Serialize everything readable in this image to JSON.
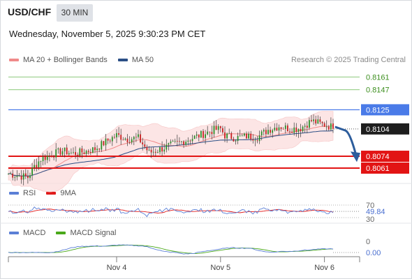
{
  "header": {
    "symbol": "USD/CHF",
    "timeframe": "30 MIN",
    "datetime": "Wednesday, November 5, 2025 9:30:23 PM CET",
    "credit": "Research © 2025 Trading Central"
  },
  "legends": {
    "price": [
      {
        "label": "MA 20 + Bollinger Bands",
        "color": "#f08a8a"
      },
      {
        "label": "MA 50",
        "color": "#2b4f86"
      }
    ],
    "rsi": [
      {
        "label": "RSI",
        "color": "#5b7fd6"
      },
      {
        "label": "9MA",
        "color": "#e01a1a"
      }
    ],
    "macd": [
      {
        "label": "MACD",
        "color": "#5b7fd6"
      },
      {
        "label": "MACD Signal",
        "color": "#4aa81a"
      }
    ]
  },
  "colors": {
    "support": "#e21414",
    "pivot": "#4a7be8",
    "resistance": "#8cc97c",
    "current": "#1e1e1e",
    "arrow": "#2d5d9c"
  },
  "chart_data": [
    {
      "type": "candlestick",
      "ylim": [
        0.8048,
        0.8172
      ],
      "x_ticks": [
        {
          "label": "Nov 4",
          "index": 50
        },
        {
          "label": "Nov 5",
          "index": 98
        },
        {
          "label": "Nov 6",
          "index": 146
        }
      ],
      "levels": [
        {
          "value": 0.8161,
          "label": "0.8161",
          "kind": "resistance"
        },
        {
          "value": 0.8147,
          "label": "0.8147",
          "kind": "resistance"
        },
        {
          "value": 0.8125,
          "label": "0.8125",
          "kind": "pivot"
        },
        {
          "value": 0.8104,
          "label": "0.8104",
          "kind": "current"
        },
        {
          "value": 0.8074,
          "label": "0.8074",
          "kind": "support"
        },
        {
          "value": 0.8061,
          "label": "0.8061",
          "kind": "support"
        }
      ],
      "anchors": [
        [
          0,
          0.8055
        ],
        [
          4,
          0.8053
        ],
        [
          9,
          0.8051
        ],
        [
          12,
          0.8063
        ],
        [
          15,
          0.8071
        ],
        [
          20,
          0.8076
        ],
        [
          25,
          0.808
        ],
        [
          30,
          0.8077
        ],
        [
          35,
          0.8079
        ],
        [
          40,
          0.8082
        ],
        [
          45,
          0.809
        ],
        [
          50,
          0.8097
        ],
        [
          55,
          0.8093
        ],
        [
          60,
          0.8094
        ],
        [
          65,
          0.8078
        ],
        [
          68,
          0.808
        ],
        [
          75,
          0.8086
        ],
        [
          85,
          0.8094
        ],
        [
          95,
          0.8103
        ],
        [
          98,
          0.8104
        ],
        [
          100,
          0.8097
        ],
        [
          105,
          0.8094
        ],
        [
          110,
          0.8096
        ],
        [
          115,
          0.8095
        ],
        [
          120,
          0.8103
        ],
        [
          125,
          0.8107
        ],
        [
          130,
          0.8104
        ],
        [
          135,
          0.8105
        ],
        [
          140,
          0.8113
        ],
        [
          145,
          0.8109
        ],
        [
          150,
          0.8106
        ]
      ],
      "bars": 151,
      "outlook": "bearish"
    },
    {
      "type": "line",
      "name": "RSI",
      "ylim": [
        30,
        70
      ],
      "ticks": [
        "70",
        "30"
      ],
      "current_value": "49.84"
    },
    {
      "type": "line",
      "name": "MACD",
      "ticks": [
        "0",
        "0.00"
      ]
    }
  ]
}
